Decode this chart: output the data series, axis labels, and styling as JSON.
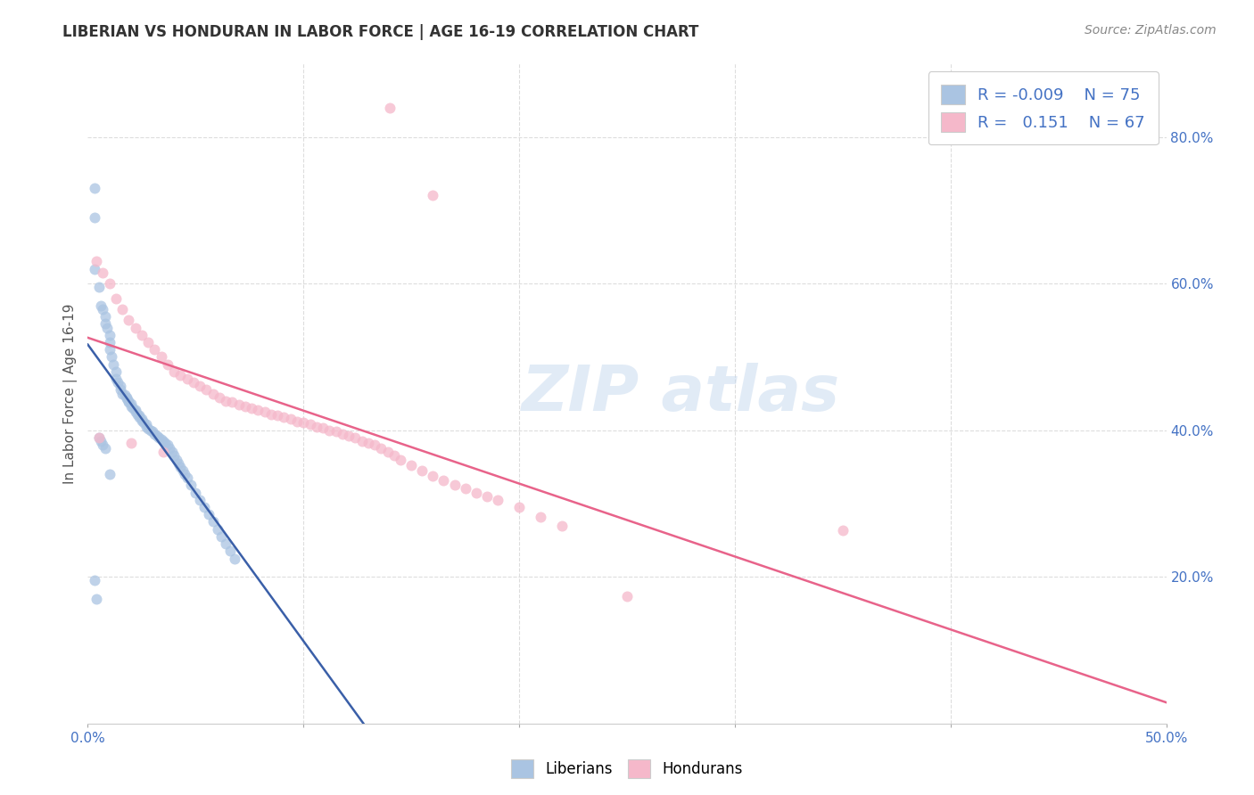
{
  "title": "LIBERIAN VS HONDURAN IN LABOR FORCE | AGE 16-19 CORRELATION CHART",
  "source": "Source: ZipAtlas.com",
  "ylabel": "In Labor Force | Age 16-19",
  "xlim": [
    0.0,
    0.5
  ],
  "ylim": [
    0.0,
    0.9
  ],
  "xticks": [
    0.0,
    0.1,
    0.2,
    0.3,
    0.4,
    0.5
  ],
  "xticklabels": [
    "0.0%",
    "",
    "",
    "",
    "",
    "50.0%"
  ],
  "yticks_right": [
    0.2,
    0.4,
    0.6,
    0.8
  ],
  "yticklabels_right": [
    "20.0%",
    "40.0%",
    "60.0%",
    "80.0%"
  ],
  "legend_r_liberian": "-0.009",
  "legend_n_liberian": "75",
  "legend_r_honduran": "0.151",
  "legend_n_honduran": "67",
  "liberian_color": "#aac4e2",
  "honduran_color": "#f5b8ca",
  "liberian_edge_color": "#aac4e2",
  "honduran_edge_color": "#f5b8ca",
  "liberian_line_color": "#3a5fa8",
  "honduran_line_color": "#e8638a",
  "legend_text_color": "#4472c4",
  "tick_color": "#4472c4",
  "watermark_color": "#c5d8ee",
  "background_color": "#ffffff",
  "grid_color": "#dddddd",
  "liberian_x": [
    0.003,
    0.003,
    0.003,
    0.005,
    0.006,
    0.007,
    0.008,
    0.008,
    0.009,
    0.01,
    0.01,
    0.01,
    0.011,
    0.012,
    0.013,
    0.013,
    0.014,
    0.015,
    0.015,
    0.016,
    0.017,
    0.018,
    0.018,
    0.019,
    0.019,
    0.02,
    0.02,
    0.021,
    0.022,
    0.022,
    0.023,
    0.024,
    0.024,
    0.025,
    0.025,
    0.026,
    0.027,
    0.027,
    0.028,
    0.029,
    0.03,
    0.031,
    0.032,
    0.033,
    0.034,
    0.035,
    0.036,
    0.037,
    0.038,
    0.039,
    0.04,
    0.041,
    0.042,
    0.043,
    0.044,
    0.045,
    0.046,
    0.048,
    0.05,
    0.052,
    0.054,
    0.056,
    0.058,
    0.06,
    0.062,
    0.064,
    0.066,
    0.068,
    0.003,
    0.004,
    0.005,
    0.006,
    0.007,
    0.008,
    0.01
  ],
  "liberian_y": [
    0.73,
    0.69,
    0.62,
    0.595,
    0.57,
    0.565,
    0.555,
    0.545,
    0.54,
    0.53,
    0.52,
    0.51,
    0.5,
    0.49,
    0.48,
    0.47,
    0.465,
    0.46,
    0.455,
    0.45,
    0.448,
    0.445,
    0.443,
    0.44,
    0.438,
    0.436,
    0.433,
    0.43,
    0.428,
    0.425,
    0.422,
    0.42,
    0.418,
    0.415,
    0.413,
    0.41,
    0.408,
    0.405,
    0.402,
    0.4,
    0.398,
    0.395,
    0.392,
    0.39,
    0.388,
    0.385,
    0.382,
    0.38,
    0.375,
    0.37,
    0.365,
    0.36,
    0.355,
    0.35,
    0.345,
    0.34,
    0.335,
    0.325,
    0.315,
    0.305,
    0.295,
    0.285,
    0.275,
    0.265,
    0.255,
    0.245,
    0.235,
    0.225,
    0.195,
    0.17,
    0.39,
    0.385,
    0.38,
    0.375,
    0.34
  ],
  "honduran_x": [
    0.14,
    0.16,
    0.004,
    0.007,
    0.01,
    0.013,
    0.016,
    0.019,
    0.022,
    0.025,
    0.028,
    0.031,
    0.034,
    0.037,
    0.04,
    0.043,
    0.046,
    0.049,
    0.052,
    0.055,
    0.058,
    0.061,
    0.064,
    0.067,
    0.07,
    0.073,
    0.076,
    0.079,
    0.082,
    0.085,
    0.088,
    0.091,
    0.094,
    0.097,
    0.1,
    0.103,
    0.106,
    0.109,
    0.112,
    0.115,
    0.118,
    0.121,
    0.124,
    0.127,
    0.13,
    0.133,
    0.136,
    0.139,
    0.142,
    0.145,
    0.15,
    0.155,
    0.16,
    0.165,
    0.17,
    0.175,
    0.18,
    0.185,
    0.19,
    0.2,
    0.21,
    0.22,
    0.25,
    0.35,
    0.005,
    0.02,
    0.035
  ],
  "honduran_y": [
    0.84,
    0.72,
    0.63,
    0.615,
    0.6,
    0.58,
    0.565,
    0.55,
    0.54,
    0.53,
    0.52,
    0.51,
    0.5,
    0.49,
    0.48,
    0.475,
    0.47,
    0.465,
    0.46,
    0.455,
    0.45,
    0.445,
    0.44,
    0.438,
    0.435,
    0.432,
    0.43,
    0.428,
    0.425,
    0.422,
    0.42,
    0.418,
    0.415,
    0.412,
    0.41,
    0.408,
    0.405,
    0.403,
    0.4,
    0.398,
    0.395,
    0.392,
    0.39,
    0.385,
    0.382,
    0.38,
    0.375,
    0.37,
    0.365,
    0.36,
    0.352,
    0.345,
    0.338,
    0.332,
    0.326,
    0.32,
    0.315,
    0.31,
    0.305,
    0.295,
    0.282,
    0.27,
    0.173,
    0.264,
    0.39,
    0.382,
    0.37
  ],
  "marker_size": 75,
  "marker_alpha": 0.75
}
